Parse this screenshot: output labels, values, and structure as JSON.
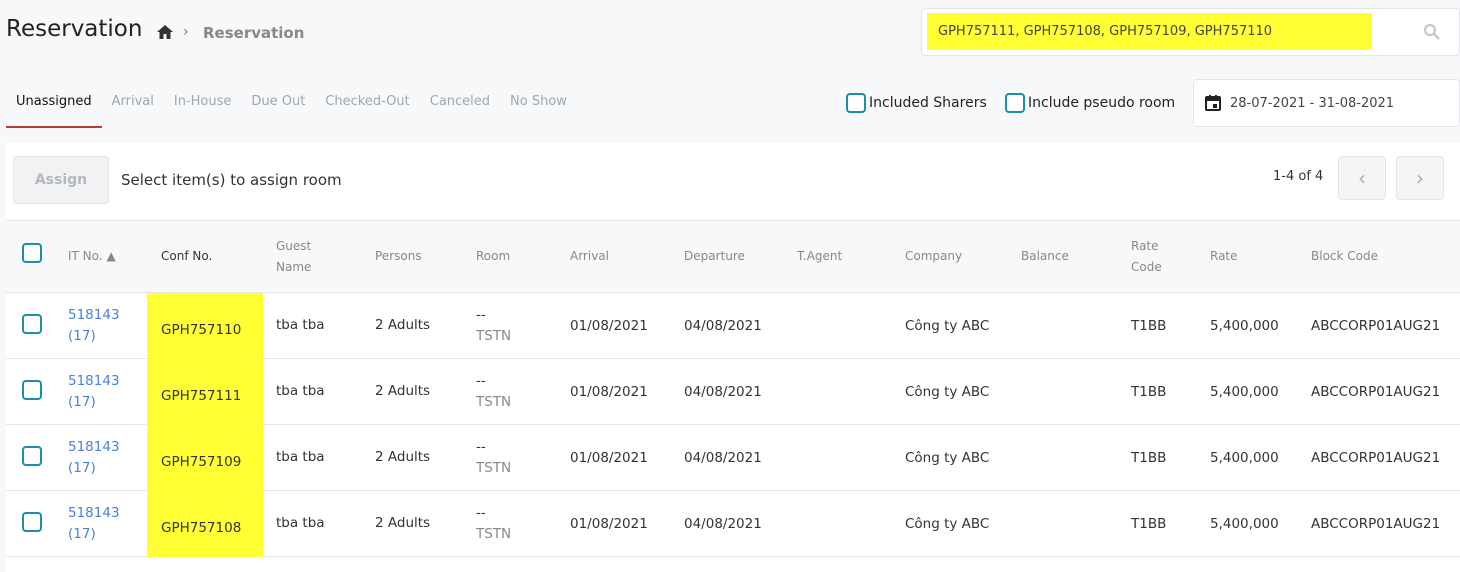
{
  "header": {
    "title": "Reservation",
    "breadcrumb": [
      "Reservation"
    ]
  },
  "search": {
    "value": "GPH757111, GPH757108, GPH757109, GPH757110",
    "highlight_color": "#ffff33"
  },
  "tabs": [
    {
      "label": "Unassigned",
      "active": true
    },
    {
      "label": "Arrival"
    },
    {
      "label": "In-House"
    },
    {
      "label": "Due Out"
    },
    {
      "label": "Checked-Out"
    },
    {
      "label": "Canceled"
    },
    {
      "label": "No Show"
    }
  ],
  "filters": {
    "included_sharers": "Included Sharers",
    "include_pseudo": "Include pseudo room",
    "date_range": "28-07-2021 - 31-08-2021"
  },
  "toolbar": {
    "assign": "Assign",
    "hint": "Select item(s) to assign room",
    "pager": "1-4 of 4"
  },
  "columns": [
    "IT No.",
    "Conf No.",
    "Guest Name",
    "Persons",
    "Room",
    "Arrival",
    "Departure",
    "T.Agent",
    "Company",
    "Balance",
    "Rate Code",
    "Rate",
    "Block Code"
  ],
  "rows": [
    {
      "it": "518143",
      "it_sub": "(17)",
      "conf": "GPH757110",
      "guest": "tba tba",
      "persons": "2 Adults",
      "room": "--",
      "room_type": "TSTN",
      "arrival": "01/08/2021",
      "departure": "04/08/2021",
      "agent": "",
      "company": "Công ty ABC",
      "balance": "",
      "rate_code": "T1BB",
      "rate": "5,400,000",
      "block": "ABCCORP01AUG21"
    },
    {
      "it": "518143",
      "it_sub": "(17)",
      "conf": "GPH757111",
      "guest": "tba tba",
      "persons": "2 Adults",
      "room": "--",
      "room_type": "TSTN",
      "arrival": "01/08/2021",
      "departure": "04/08/2021",
      "agent": "",
      "company": "Công ty ABC",
      "balance": "",
      "rate_code": "T1BB",
      "rate": "5,400,000",
      "block": "ABCCORP01AUG21"
    },
    {
      "it": "518143",
      "it_sub": "(17)",
      "conf": "GPH757109",
      "guest": "tba tba",
      "persons": "2 Adults",
      "room": "--",
      "room_type": "TSTN",
      "arrival": "01/08/2021",
      "departure": "04/08/2021",
      "agent": "",
      "company": "Công ty ABC",
      "balance": "",
      "rate_code": "T1BB",
      "rate": "5,400,000",
      "block": "ABCCORP01AUG21"
    },
    {
      "it": "518143",
      "it_sub": "(17)",
      "conf": "GPH757108",
      "guest": "tba tba",
      "persons": "2 Adults",
      "room": "--",
      "room_type": "TSTN",
      "arrival": "01/08/2021",
      "departure": "04/08/2021",
      "agent": "",
      "company": "Công ty ABC",
      "balance": "",
      "rate_code": "T1BB",
      "rate": "5,400,000",
      "block": "ABCCORP01AUG21"
    }
  ],
  "colors": {
    "accent": "#1a8fa6",
    "tab_underline": "#b83a3a",
    "link": "#4a7fe0"
  }
}
